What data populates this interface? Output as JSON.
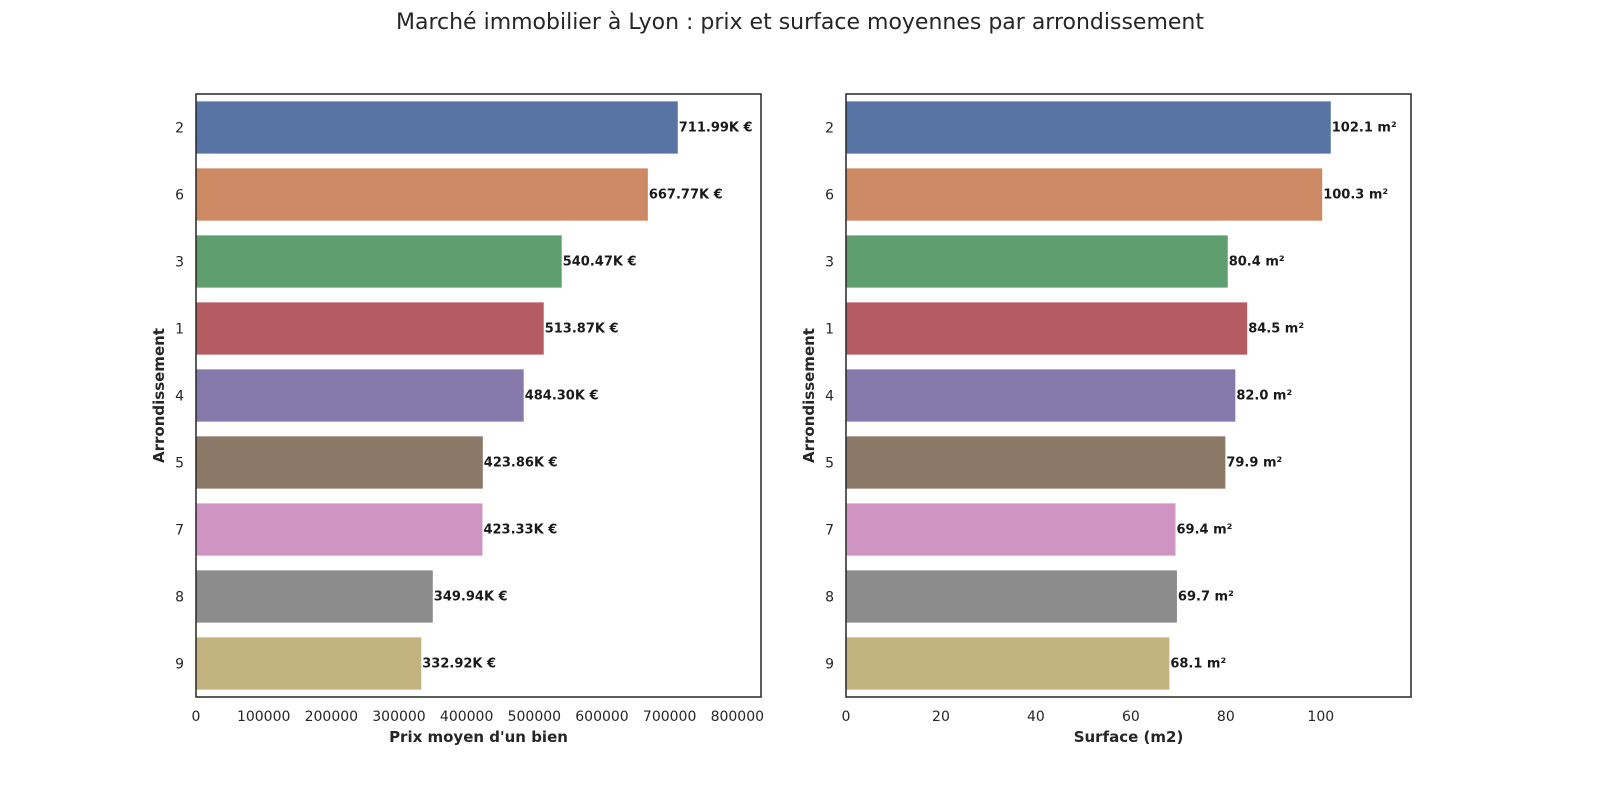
{
  "title": "Marché immobilier à Lyon : prix et surface moyennes par arrondissement",
  "chart_data": [
    {
      "type": "bar",
      "orientation": "horizontal",
      "categories": [
        "2",
        "6",
        "3",
        "1",
        "4",
        "5",
        "7",
        "8",
        "9"
      ],
      "values": [
        711990,
        667770,
        540470,
        513870,
        484300,
        423860,
        423330,
        349940,
        332920
      ],
      "data_labels": [
        "711.99K €",
        "667.77K €",
        "540.47K €",
        "513.87K €",
        "484.30K €",
        "423.86K €",
        "423.33K €",
        "349.94K €",
        "332.92K €"
      ],
      "xlabel": "Prix moyen d'un bien",
      "ylabel": "Arrondissement",
      "xlim": [
        0,
        835000
      ],
      "xticks": [
        0,
        100000,
        200000,
        300000,
        400000,
        500000,
        600000,
        700000,
        800000
      ],
      "grid": false
    },
    {
      "type": "bar",
      "orientation": "horizontal",
      "categories": [
        "2",
        "6",
        "3",
        "1",
        "4",
        "5",
        "7",
        "8",
        "9"
      ],
      "values": [
        102.1,
        100.3,
        80.4,
        84.5,
        82.0,
        79.9,
        69.4,
        69.7,
        68.1
      ],
      "data_labels": [
        "102.1 m²",
        "100.3 m²",
        "80.4 m²",
        "84.5 m²",
        "82.0 m²",
        "79.9 m²",
        "69.4 m²",
        "69.7 m²",
        "68.1 m²"
      ],
      "xlabel": "Surface (m2)",
      "ylabel": "Arrondissement",
      "xlim": [
        0,
        119
      ],
      "xticks": [
        0,
        20,
        40,
        60,
        80,
        100
      ],
      "grid": false
    }
  ],
  "colors": [
    "#5874a5",
    "#cd8963",
    "#5f9f6f",
    "#b45c62",
    "#857aab",
    "#8c7866",
    "#d094c2",
    "#8c8c8c",
    "#c2b37f"
  ]
}
